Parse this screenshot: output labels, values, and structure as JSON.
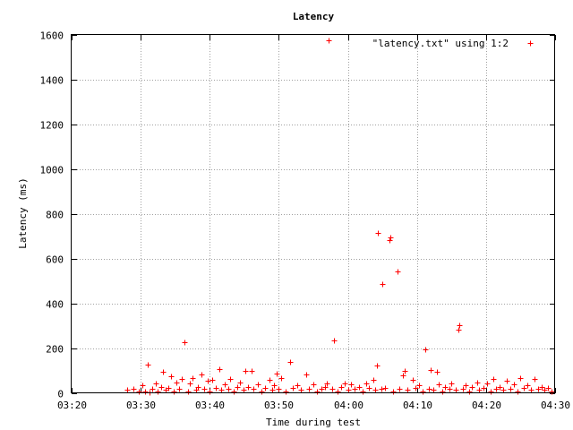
{
  "chart_data": {
    "type": "scatter",
    "title": "Latency",
    "xlabel": "Time during test",
    "ylabel": "Latency (ms)",
    "xlim": [
      "03:20",
      "04:30"
    ],
    "ylim": [
      0,
      1600
    ],
    "x_ticks": [
      "03:20",
      "03:30",
      "03:40",
      "03:50",
      "04:00",
      "04:10",
      "04:20",
      "04:30"
    ],
    "y_ticks": [
      0,
      200,
      400,
      600,
      800,
      1000,
      1200,
      1400,
      1600
    ],
    "grid": true,
    "legend_position": "top-right",
    "marker": "plus",
    "series": [
      {
        "name": "\"latency.txt\" using 1:2",
        "color": "#ff0000",
        "points": [
          [
            "03:28:00",
            15
          ],
          [
            "03:29:00",
            20
          ],
          [
            "03:29:45",
            10
          ],
          [
            "03:30:15",
            35
          ],
          [
            "03:30:40",
            10
          ],
          [
            "03:31:00",
            130
          ],
          [
            "03:31:20",
            5
          ],
          [
            "03:31:40",
            20
          ],
          [
            "03:32:10",
            45
          ],
          [
            "03:32:30",
            10
          ],
          [
            "03:33:00",
            30
          ],
          [
            "03:33:10",
            95
          ],
          [
            "03:33:40",
            15
          ],
          [
            "03:34:00",
            25
          ],
          [
            "03:34:20",
            75
          ],
          [
            "03:34:50",
            10
          ],
          [
            "03:35:10",
            50
          ],
          [
            "03:35:30",
            20
          ],
          [
            "03:36:00",
            65
          ],
          [
            "03:36:20",
            228
          ],
          [
            "03:36:50",
            10
          ],
          [
            "03:37:10",
            45
          ],
          [
            "03:37:30",
            70
          ],
          [
            "03:38:00",
            15
          ],
          [
            "03:38:20",
            30
          ],
          [
            "03:38:50",
            85
          ],
          [
            "03:39:10",
            20
          ],
          [
            "03:39:40",
            55
          ],
          [
            "03:40:00",
            10
          ],
          [
            "03:40:20",
            60
          ],
          [
            "03:40:50",
            25
          ],
          [
            "03:41:20",
            110
          ],
          [
            "03:41:40",
            15
          ],
          [
            "03:42:10",
            40
          ],
          [
            "03:42:40",
            20
          ],
          [
            "03:43:00",
            65
          ],
          [
            "03:43:30",
            10
          ],
          [
            "03:44:00",
            30
          ],
          [
            "03:44:20",
            50
          ],
          [
            "03:44:50",
            15
          ],
          [
            "03:45:10",
            100
          ],
          [
            "03:45:30",
            30
          ],
          [
            "03:46:00",
            102
          ],
          [
            "03:46:20",
            20
          ],
          [
            "03:47:00",
            40
          ],
          [
            "03:47:30",
            10
          ],
          [
            "03:48:00",
            25
          ],
          [
            "03:48:40",
            60
          ],
          [
            "03:49:00",
            15
          ],
          [
            "03:49:20",
            35
          ],
          [
            "03:49:40",
            90
          ],
          [
            "03:50:00",
            20
          ],
          [
            "03:50:20",
            70
          ],
          [
            "03:51:00",
            10
          ],
          [
            "03:51:40",
            140
          ],
          [
            "03:52:00",
            25
          ],
          [
            "03:52:40",
            35
          ],
          [
            "03:53:10",
            15
          ],
          [
            "03:54:00",
            85
          ],
          [
            "03:54:20",
            20
          ],
          [
            "03:55:00",
            40
          ],
          [
            "03:55:30",
            10
          ],
          [
            "03:56:10",
            20
          ],
          [
            "03:56:40",
            30
          ],
          [
            "03:57:00",
            45
          ],
          [
            "03:57:10",
            1575
          ],
          [
            "03:57:40",
            20
          ],
          [
            "03:58:00",
            238
          ],
          [
            "03:58:30",
            10
          ],
          [
            "03:59:00",
            30
          ],
          [
            "03:59:30",
            45
          ],
          [
            "04:00:00",
            15
          ],
          [
            "04:00:30",
            40
          ],
          [
            "04:01:00",
            20
          ],
          [
            "04:01:40",
            30
          ],
          [
            "04:02:10",
            10
          ],
          [
            "04:02:40",
            45
          ],
          [
            "04:03:00",
            25
          ],
          [
            "04:03:40",
            60
          ],
          [
            "04:04:00",
            15
          ],
          [
            "04:04:10",
            125
          ],
          [
            "04:04:20",
            715
          ],
          [
            "04:04:50",
            20
          ],
          [
            "04:05:00",
            490
          ],
          [
            "04:05:20",
            25
          ],
          [
            "04:06:00",
            685
          ],
          [
            "04:06:10",
            695
          ],
          [
            "04:06:30",
            10
          ],
          [
            "04:07:10",
            545
          ],
          [
            "04:07:30",
            20
          ],
          [
            "04:08:00",
            80
          ],
          [
            "04:08:10",
            100
          ],
          [
            "04:08:40",
            15
          ],
          [
            "04:09:20",
            60
          ],
          [
            "04:09:50",
            25
          ],
          [
            "04:10:20",
            35
          ],
          [
            "04:10:50",
            10
          ],
          [
            "04:11:10",
            195
          ],
          [
            "04:11:40",
            20
          ],
          [
            "04:12:00",
            105
          ],
          [
            "04:12:20",
            15
          ],
          [
            "04:12:50",
            95
          ],
          [
            "04:13:10",
            40
          ],
          [
            "04:13:40",
            10
          ],
          [
            "04:14:00",
            30
          ],
          [
            "04:14:40",
            20
          ],
          [
            "04:15:00",
            45
          ],
          [
            "04:15:40",
            15
          ],
          [
            "04:16:00",
            285
          ],
          [
            "04:16:10",
            305
          ],
          [
            "04:16:40",
            20
          ],
          [
            "04:17:00",
            35
          ],
          [
            "04:17:30",
            10
          ],
          [
            "04:18:00",
            30
          ],
          [
            "04:18:40",
            50
          ],
          [
            "04:19:00",
            15
          ],
          [
            "04:19:40",
            25
          ],
          [
            "04:20:10",
            45
          ],
          [
            "04:20:40",
            10
          ],
          [
            "04:21:00",
            65
          ],
          [
            "04:21:30",
            20
          ],
          [
            "04:22:00",
            30
          ],
          [
            "04:22:30",
            15
          ],
          [
            "04:23:00",
            55
          ],
          [
            "04:23:30",
            20
          ],
          [
            "04:24:00",
            40
          ],
          [
            "04:24:30",
            10
          ],
          [
            "04:25:00",
            70
          ],
          [
            "04:25:30",
            25
          ],
          [
            "04:26:00",
            35
          ],
          [
            "04:26:30",
            15
          ],
          [
            "04:27:00",
            65
          ],
          [
            "04:27:30",
            20
          ],
          [
            "04:28:00",
            30
          ],
          [
            "04:28:30",
            15
          ],
          [
            "04:29:00",
            25
          ],
          [
            "04:29:30",
            10
          ]
        ]
      }
    ]
  }
}
